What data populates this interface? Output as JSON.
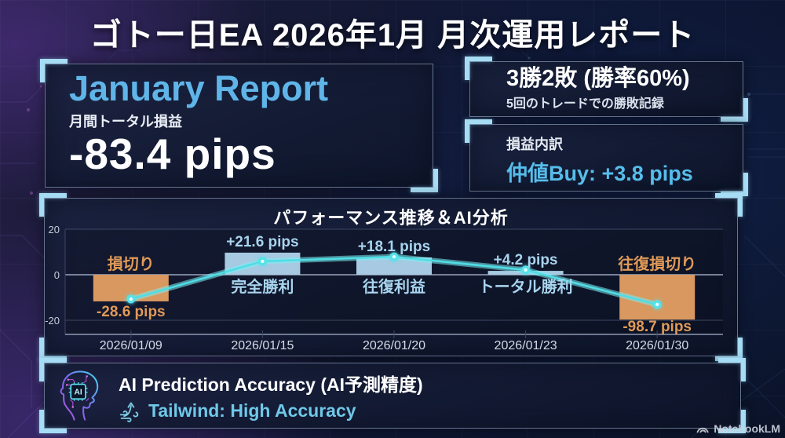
{
  "page_title": "ゴトー日EA 2026年1月 月次運用レポート",
  "summary_panel": {
    "heading": "January Report",
    "subtitle": "月間トータル損益",
    "value": "-83.4 pips"
  },
  "record_panel": {
    "headline": "3勝2敗 (勝率60%)",
    "subtext": "5回のトレードでの勝敗記録"
  },
  "breakdown_panel": {
    "label": "損益内訳",
    "entry": "仲値Buy:  +3.8 pips"
  },
  "chart_data": {
    "type": "bar+line",
    "title": "パフォーマンス推移＆AI分析",
    "categories": [
      "2026/01/09",
      "2026/01/15",
      "2026/01/20",
      "2026/01/23",
      "2026/01/30"
    ],
    "bar_values": [
      -28.6,
      21.6,
      18.1,
      4.2,
      -98.7
    ],
    "value_labels": [
      "-28.6 pips",
      "+21.6 pips",
      "+18.1 pips",
      "+4.2 pips",
      "-98.7 pips"
    ],
    "outcome_labels": [
      "損切り",
      "完全勝利",
      "往復利益",
      "トータル勝利",
      "往復損切り"
    ],
    "bar_values_as_drawn": [
      -11.7,
      9.7,
      7.6,
      1.7,
      -19.7
    ],
    "line_values_as_drawn": [
      -10.7,
      5.9,
      7.9,
      2.1,
      -13.1
    ],
    "yticks": [
      20,
      0,
      -20
    ],
    "ylim_as_drawn": [
      -26,
      24
    ],
    "grid": true,
    "legend": false,
    "bar_color_positive": "#a7c9e2",
    "bar_color_negative": "#d9985f",
    "line_color": "#4fdde6",
    "label_color_positive": "#a8d4ee",
    "label_color_negative": "#e09a58"
  },
  "ai_panel": {
    "heading": "AI Prediction Accuracy (AI予測精度)",
    "status": "Tailwind: High Accuracy",
    "chip_label": "AI"
  },
  "footer": {
    "brand": "NotebookLM"
  },
  "decor": {
    "zero_glyph": "0"
  }
}
